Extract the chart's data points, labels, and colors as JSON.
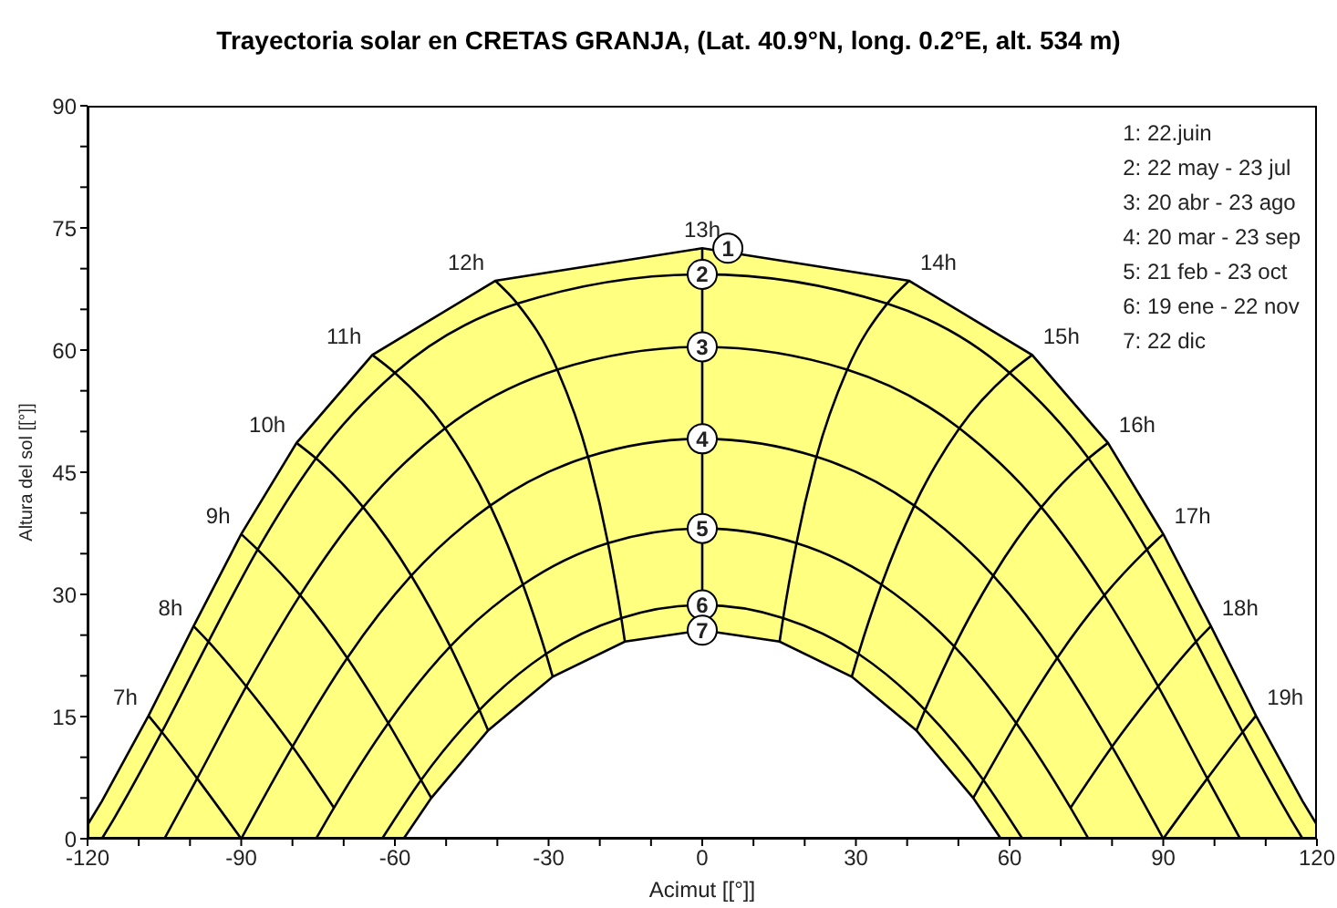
{
  "chart_data": {
    "type": "line",
    "title": "Trayectoria solar en  CRETAS GRANJA, (Lat. 40.9°N, long. 0.2°E, alt. 534 m)",
    "xlabel": "Acimut [[°]]",
    "ylabel": "Altura del sol [[°]]",
    "xlim": [
      -120,
      120
    ],
    "xticks": [
      -120,
      {
        "value": -110,
        "label": null
      },
      {
        "value": -100,
        "label": null
      },
      -90,
      {
        "value": -80,
        "label": null
      },
      {
        "value": -70,
        "label": null
      },
      -60,
      {
        "value": -50,
        "label": null
      },
      {
        "value": -40,
        "label": null
      },
      -30,
      {
        "value": -20,
        "label": null
      },
      {
        "value": -10,
        "label": null
      },
      0,
      {
        "value": 10,
        "label": null
      },
      {
        "value": 20,
        "label": null
      },
      30,
      {
        "value": 40,
        "label": null
      },
      {
        "value": 50,
        "label": null
      },
      60,
      {
        "value": 70,
        "label": null
      },
      {
        "value": 80,
        "label": null
      },
      90,
      {
        "value": 100,
        "label": null
      },
      {
        "value": 110,
        "label": null
      },
      120
    ],
    "ylim": [
      0,
      90
    ],
    "yticks": [
      0,
      {
        "value": 5,
        "label": null
      },
      {
        "value": 10,
        "label": null
      },
      15,
      {
        "value": 20,
        "label": null
      },
      {
        "value": 25,
        "label": null
      },
      30,
      {
        "value": 35,
        "label": null
      },
      {
        "value": 40,
        "label": null
      },
      45,
      {
        "value": 50,
        "label": null
      },
      {
        "value": 55,
        "label": null
      },
      60,
      {
        "value": 65,
        "label": null
      },
      {
        "value": 70,
        "label": null
      },
      75,
      {
        "value": 80,
        "label": null
      },
      {
        "value": 85,
        "label": null
      },
      90
    ],
    "grid": false,
    "marker": "none",
    "line_style": "solid",
    "series": [
      {
        "type": "area",
        "color": "#ffff80",
        "x": [
          -120,
          -117.2,
          -108.1,
          -99.3,
          -90,
          -79.2,
          -64.4,
          -40.4,
          0,
          40.4,
          64.4,
          79.2,
          90,
          99.3,
          108.1,
          117.2,
          120
        ],
        "values": [
          1.7,
          4.6,
          15.1,
          26.1,
          37.4,
          48.6,
          59.4,
          68.5,
          72.5,
          68.5,
          59.4,
          48.6,
          37.4,
          26.1,
          15.1,
          4.6,
          1.7
        ]
      },
      {
        "color": "#000000",
        "x": [
          -117.2,
          -114.9,
          -105.5,
          -96.4,
          -86.8,
          -75.4,
          -60,
          -36.1,
          0,
          36.1,
          60,
          75.4,
          86.8,
          96.4,
          105.5,
          114.9,
          117.2
        ],
        "values": [
          0,
          2.4,
          13.1,
          24.2,
          35.5,
          46.7,
          57.2,
          65.7,
          69.3,
          65.7,
          57.2,
          46.7,
          35.5,
          24.2,
          13.1,
          2.4,
          0
        ]
      },
      {
        "color": "#000000",
        "x": [
          -105,
          -98.6,
          -89,
          -78.5,
          -66.2,
          -50.2,
          -28.3,
          0,
          28.3,
          50.2,
          66.2,
          78.5,
          89,
          98.6,
          105
        ],
        "values": [
          0,
          7.4,
          18.7,
          29.9,
          40.7,
          50.4,
          57.6,
          60.4,
          57.6,
          50.4,
          40.7,
          29.9,
          18.7,
          7.4,
          0
        ]
      },
      {
        "color": "#000000",
        "x": [
          -90,
          -80,
          -69.3,
          -56.8,
          -41.4,
          -22.3,
          0,
          22.3,
          41.4,
          56.8,
          69.3,
          80,
          90
        ],
        "values": [
          0,
          11.3,
          22.2,
          32.3,
          40.9,
          46.9,
          49.1,
          46.9,
          40.9,
          32.3,
          22.2,
          11.3,
          0
        ]
      },
      {
        "color": "#000000",
        "x": [
          -75.4,
          -71.9,
          -61.3,
          -49.2,
          -35,
          -18.4,
          0,
          18.4,
          35,
          49.2,
          61.3,
          71.9,
          75.4
        ],
        "values": [
          0,
          3.8,
          14.2,
          23.6,
          31.2,
          36.3,
          38.1,
          36.3,
          31.2,
          23.6,
          14.2,
          3.8,
          0
        ]
      },
      {
        "color": "#000000",
        "x": [
          -62.5,
          -54.9,
          -43.5,
          -30.5,
          -15.8,
          0,
          15.8,
          30.5,
          43.5,
          54.9,
          62.5
        ],
        "values": [
          0,
          7.2,
          15.8,
          22.7,
          27.1,
          28.7,
          27.1,
          22.7,
          15.8,
          7.2,
          0
        ]
      },
      {
        "type": "area",
        "color": "#ffffff",
        "x": [
          -58.3,
          -52.9,
          -41.8,
          -29.2,
          -15.1,
          0,
          15.1,
          29.2,
          41.8,
          52.9,
          58.3
        ],
        "values": [
          0,
          5,
          13.3,
          19.9,
          24.2,
          25.6,
          24.2,
          19.9,
          13.3,
          5,
          0
        ]
      },
      {
        "color": "#000000",
        "x": [
          -108.1,
          -105.5,
          -98.6,
          -90
        ],
        "values": [
          15.1,
          13.1,
          7.4,
          0
        ]
      },
      {
        "color": "#000000",
        "x": [
          -99.3,
          -96.4,
          -89,
          -80,
          -71.9
        ],
        "values": [
          26.1,
          24.2,
          18.7,
          11.3,
          3.8
        ]
      },
      {
        "color": "#000000",
        "x": [
          -90,
          -86.8,
          -78.5,
          -69.3,
          -61.3,
          -54.9,
          -52.9
        ],
        "values": [
          37.4,
          35.5,
          29.9,
          22.2,
          14.2,
          7.2,
          5
        ]
      },
      {
        "color": "#000000",
        "x": [
          -79.2,
          -75.4,
          -66.2,
          -56.8,
          -49.2,
          -43.5,
          -41.8
        ],
        "values": [
          48.6,
          46.7,
          40.7,
          32.3,
          23.6,
          15.8,
          13.3
        ]
      },
      {
        "color": "#000000",
        "x": [
          -64.4,
          -60,
          -50.2,
          -41.4,
          -35,
          -30.5,
          -29.2
        ],
        "values": [
          59.4,
          57.2,
          50.4,
          40.9,
          31.2,
          22.7,
          19.9
        ]
      },
      {
        "color": "#000000",
        "x": [
          -40.4,
          -36.1,
          -28.3,
          -22.3,
          -18.4,
          -15.8,
          -15.1
        ],
        "values": [
          68.5,
          65.7,
          57.6,
          46.9,
          36.3,
          27.1,
          24.2
        ]
      },
      {
        "color": "#000000",
        "x": [
          0,
          0,
          0,
          0,
          0,
          0,
          0
        ],
        "values": [
          72.5,
          69.3,
          60.4,
          49.1,
          38.1,
          28.7,
          25.6
        ]
      },
      {
        "color": "#000000",
        "x": [
          40.4,
          36.1,
          28.3,
          22.3,
          18.4,
          15.8,
          15.1
        ],
        "values": [
          68.5,
          65.7,
          57.6,
          46.9,
          36.3,
          27.1,
          24.2
        ]
      },
      {
        "color": "#000000",
        "x": [
          64.4,
          60,
          50.2,
          41.4,
          35,
          30.5,
          29.2
        ],
        "values": [
          59.4,
          57.2,
          50.4,
          40.9,
          31.2,
          22.7,
          19.9
        ]
      },
      {
        "color": "#000000",
        "x": [
          79.2,
          75.4,
          66.2,
          56.8,
          49.2,
          43.5,
          41.8
        ],
        "values": [
          48.6,
          46.7,
          40.7,
          32.3,
          23.6,
          15.8,
          13.3
        ]
      },
      {
        "color": "#000000",
        "x": [
          90,
          86.8,
          78.5,
          69.3,
          61.3,
          54.9,
          52.9
        ],
        "values": [
          37.4,
          35.5,
          29.9,
          22.2,
          14.2,
          7.2,
          5
        ]
      },
      {
        "color": "#000000",
        "x": [
          99.3,
          96.4,
          89,
          80,
          71.9
        ],
        "values": [
          26.1,
          24.2,
          18.7,
          11.3,
          3.8
        ]
      },
      {
        "color": "#000000",
        "x": [
          108.1,
          105.5,
          98.6,
          90
        ],
        "values": [
          15.1,
          13.1,
          7.4,
          0
        ]
      }
    ],
    "annotations": [
      {
        "text": "1",
        "x": 5,
        "y": 72.5
      },
      {
        "text": "2",
        "x": 0,
        "y": 69.3
      },
      {
        "text": "3",
        "x": 0,
        "y": 60.4
      },
      {
        "text": "4",
        "x": 0,
        "y": 49.1
      },
      {
        "text": "5",
        "x": 0,
        "y": 38.1
      },
      {
        "text": "6",
        "x": 0,
        "y": 28.7
      },
      {
        "text": "7",
        "x": 0,
        "y": 25.6
      },
      {
        "text": "7h",
        "x": -108.1,
        "y": 15.1
      },
      {
        "text": "8h",
        "x": -99.3,
        "y": 26.1
      },
      {
        "text": "9h",
        "x": -90,
        "y": 37.4
      },
      {
        "text": "10h",
        "x": -79.2,
        "y": 48.6
      },
      {
        "text": "11h",
        "x": -64.4,
        "y": 59.4
      },
      {
        "text": "12h",
        "x": -40.4,
        "y": 68.5
      },
      {
        "text": "13h",
        "x": 0,
        "y": 72.5
      },
      {
        "text": "14h",
        "x": 40.4,
        "y": 68.5
      },
      {
        "text": "15h",
        "x": 64.4,
        "y": 59.4
      },
      {
        "text": "16h",
        "x": 79.2,
        "y": 48.6
      },
      {
        "text": "17h",
        "x": 90,
        "y": 37.4
      },
      {
        "text": "18h",
        "x": 99.3,
        "y": 26.1
      },
      {
        "text": "19h",
        "x": 108.1,
        "y": 15.1
      },
      "1: 22.juin",
      "2: 22 may - 23 jul",
      "3: 20 abr - 23 ago",
      "4: 20 mar - 23 sep",
      "5: 21 feb - 23 oct",
      "6: 19 ene - 22 nov",
      "7: 22 dic"
    ]
  }
}
